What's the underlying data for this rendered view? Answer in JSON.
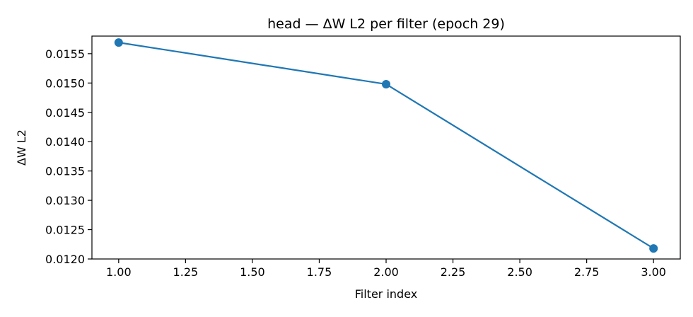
{
  "chart_data": {
    "type": "line",
    "title": "head — ΔW L2 per filter (epoch 29)",
    "xlabel": "Filter index",
    "ylabel": "ΔW L2",
    "x": [
      1,
      2,
      3
    ],
    "series": [
      {
        "values": [
          0.01569,
          0.01498,
          0.01218
        ]
      }
    ],
    "xlim": [
      0.9,
      3.1
    ],
    "ylim": [
      0.012,
      0.0158
    ],
    "xticks": [
      1.0,
      1.25,
      1.5,
      1.75,
      2.0,
      2.25,
      2.5,
      2.75,
      3.0
    ],
    "xtick_labels": [
      "1.00",
      "1.25",
      "1.50",
      "1.75",
      "2.00",
      "2.25",
      "2.50",
      "2.75",
      "3.00"
    ],
    "yticks": [
      0.012,
      0.0125,
      0.013,
      0.0135,
      0.014,
      0.0145,
      0.015,
      0.0155
    ],
    "ytick_labels": [
      "0.0120",
      "0.0125",
      "0.0130",
      "0.0135",
      "0.0140",
      "0.0145",
      "0.0150",
      "0.0155"
    ],
    "grid": false,
    "legend": false,
    "line_color": "#1f77b4",
    "marker": "circle"
  }
}
